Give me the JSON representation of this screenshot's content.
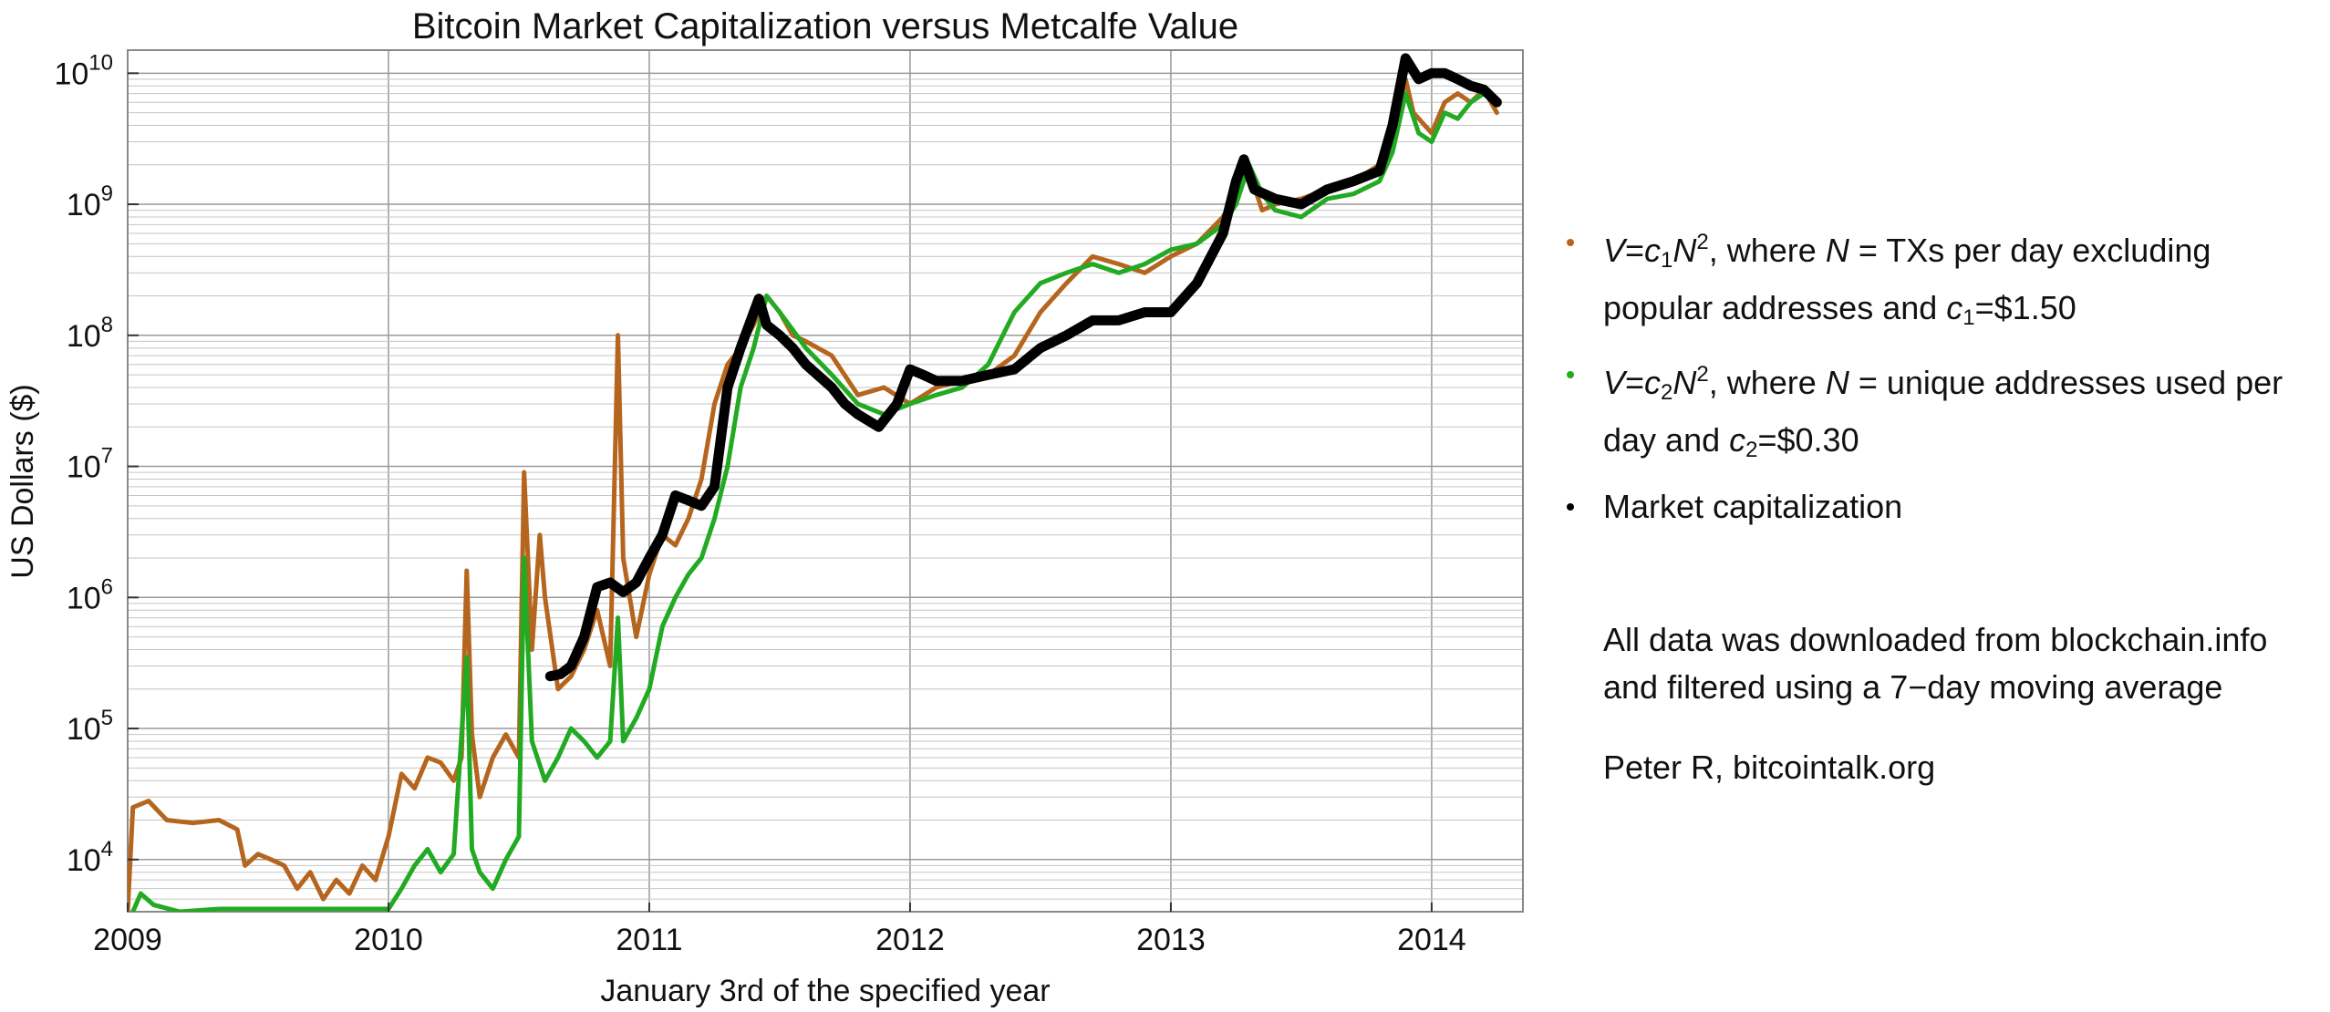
{
  "chart_data": {
    "type": "line",
    "title": "Bitcoin Market Capitalization versus Metcalfe Value",
    "xlabel": "January 3rd of the specified year",
    "ylabel": "US Dollars ($)",
    "xlim": [
      2009.0,
      2014.35
    ],
    "ylim": [
      4000,
      15000000000
    ],
    "y_scale": "log",
    "grid": true,
    "x_ticks": [
      "2009",
      "2010",
      "2011",
      "2012",
      "2013",
      "2014"
    ],
    "y_ticks": [
      {
        "base": "10",
        "exp": "4"
      },
      {
        "base": "10",
        "exp": "5"
      },
      {
        "base": "10",
        "exp": "6"
      },
      {
        "base": "10",
        "exp": "7"
      },
      {
        "base": "10",
        "exp": "8"
      },
      {
        "base": "10",
        "exp": "9"
      },
      {
        "base": "10",
        "exp": "10"
      }
    ],
    "legend_position": "right",
    "series": [
      {
        "name": "V=c1N2, where N = TXs per day excluding popular addresses and c1=$1.50",
        "color": "#b5651d",
        "points": [
          [
            2009.0,
            4000
          ],
          [
            2009.02,
            25000
          ],
          [
            2009.08,
            28000
          ],
          [
            2009.15,
            20000
          ],
          [
            2009.25,
            19000
          ],
          [
            2009.35,
            20000
          ],
          [
            2009.42,
            17000
          ],
          [
            2009.45,
            9000
          ],
          [
            2009.5,
            11000
          ],
          [
            2009.55,
            10000
          ],
          [
            2009.6,
            9000
          ],
          [
            2009.65,
            6000
          ],
          [
            2009.7,
            8000
          ],
          [
            2009.75,
            5000
          ],
          [
            2009.8,
            7000
          ],
          [
            2009.85,
            5500
          ],
          [
            2009.9,
            9000
          ],
          [
            2009.95,
            7000
          ],
          [
            2010.0,
            15000
          ],
          [
            2010.05,
            45000
          ],
          [
            2010.1,
            35000
          ],
          [
            2010.15,
            60000
          ],
          [
            2010.2,
            55000
          ],
          [
            2010.25,
            40000
          ],
          [
            2010.28,
            60000
          ],
          [
            2010.3,
            1600000
          ],
          [
            2010.32,
            90000
          ],
          [
            2010.35,
            30000
          ],
          [
            2010.4,
            60000
          ],
          [
            2010.45,
            90000
          ],
          [
            2010.5,
            60000
          ],
          [
            2010.52,
            9000000
          ],
          [
            2010.55,
            400000
          ],
          [
            2010.58,
            3000000
          ],
          [
            2010.6,
            1000000
          ],
          [
            2010.65,
            200000
          ],
          [
            2010.7,
            250000
          ],
          [
            2010.75,
            400000
          ],
          [
            2010.8,
            800000
          ],
          [
            2010.85,
            300000
          ],
          [
            2010.88,
            100000000
          ],
          [
            2010.9,
            2000000
          ],
          [
            2010.95,
            500000
          ],
          [
            2011.0,
            1500000
          ],
          [
            2011.05,
            3000000
          ],
          [
            2011.1,
            2500000
          ],
          [
            2011.15,
            4000000
          ],
          [
            2011.2,
            8000000
          ],
          [
            2011.25,
            30000000
          ],
          [
            2011.3,
            60000000
          ],
          [
            2011.35,
            80000000
          ],
          [
            2011.4,
            120000000
          ],
          [
            2011.45,
            200000000
          ],
          [
            2011.5,
            150000000
          ],
          [
            2011.55,
            100000000
          ],
          [
            2011.6,
            90000000
          ],
          [
            2011.7,
            70000000
          ],
          [
            2011.8,
            35000000
          ],
          [
            2011.9,
            40000000
          ],
          [
            2012.0,
            30000000
          ],
          [
            2012.1,
            40000000
          ],
          [
            2012.2,
            45000000
          ],
          [
            2012.3,
            50000000
          ],
          [
            2012.4,
            70000000
          ],
          [
            2012.5,
            150000000
          ],
          [
            2012.6,
            250000000
          ],
          [
            2012.7,
            400000000
          ],
          [
            2012.8,
            350000000
          ],
          [
            2012.9,
            300000000
          ],
          [
            2013.0,
            400000000
          ],
          [
            2013.1,
            500000000
          ],
          [
            2013.2,
            800000000
          ],
          [
            2013.25,
            1200000000
          ],
          [
            2013.3,
            1800000000
          ],
          [
            2013.35,
            900000000
          ],
          [
            2013.4,
            1000000000
          ],
          [
            2013.5,
            1100000000
          ],
          [
            2013.6,
            1300000000
          ],
          [
            2013.7,
            1500000000
          ],
          [
            2013.8,
            2000000000
          ],
          [
            2013.85,
            3000000000
          ],
          [
            2013.9,
            9000000000
          ],
          [
            2013.93,
            5000000000
          ],
          [
            2014.0,
            3500000000
          ],
          [
            2014.05,
            6000000000
          ],
          [
            2014.1,
            7000000000
          ],
          [
            2014.15,
            6000000000
          ],
          [
            2014.2,
            7500000000
          ],
          [
            2014.25,
            5000000000
          ]
        ]
      },
      {
        "name": "V=c2N2, where N = unique addresses used per day and c2=$0.30",
        "color": "#22aa22",
        "points": [
          [
            2009.02,
            4000
          ],
          [
            2009.05,
            5500
          ],
          [
            2009.1,
            4500
          ],
          [
            2009.2,
            4000
          ],
          [
            2009.35,
            4200
          ],
          [
            2010.0,
            4200
          ],
          [
            2010.05,
            6000
          ],
          [
            2010.1,
            9000
          ],
          [
            2010.15,
            12000
          ],
          [
            2010.2,
            8000
          ],
          [
            2010.25,
            11000
          ],
          [
            2010.3,
            350000
          ],
          [
            2010.32,
            12000
          ],
          [
            2010.35,
            8000
          ],
          [
            2010.4,
            6000
          ],
          [
            2010.45,
            10000
          ],
          [
            2010.5,
            15000
          ],
          [
            2010.52,
            2000000
          ],
          [
            2010.55,
            80000
          ],
          [
            2010.6,
            40000
          ],
          [
            2010.65,
            60000
          ],
          [
            2010.7,
            100000
          ],
          [
            2010.75,
            80000
          ],
          [
            2010.8,
            60000
          ],
          [
            2010.85,
            80000
          ],
          [
            2010.88,
            700000
          ],
          [
            2010.9,
            80000
          ],
          [
            2010.95,
            120000
          ],
          [
            2011.0,
            200000
          ],
          [
            2011.05,
            600000
          ],
          [
            2011.1,
            1000000
          ],
          [
            2011.15,
            1500000
          ],
          [
            2011.2,
            2000000
          ],
          [
            2011.25,
            4000000
          ],
          [
            2011.3,
            10000000
          ],
          [
            2011.35,
            40000000
          ],
          [
            2011.4,
            80000000
          ],
          [
            2011.45,
            200000000
          ],
          [
            2011.5,
            150000000
          ],
          [
            2011.55,
            110000000
          ],
          [
            2011.6,
            80000000
          ],
          [
            2011.7,
            50000000
          ],
          [
            2011.8,
            30000000
          ],
          [
            2011.9,
            25000000
          ],
          [
            2012.0,
            30000000
          ],
          [
            2012.1,
            35000000
          ],
          [
            2012.2,
            40000000
          ],
          [
            2012.3,
            60000000
          ],
          [
            2012.4,
            150000000
          ],
          [
            2012.5,
            250000000
          ],
          [
            2012.6,
            300000000
          ],
          [
            2012.7,
            350000000
          ],
          [
            2012.8,
            300000000
          ],
          [
            2012.9,
            350000000
          ],
          [
            2013.0,
            450000000
          ],
          [
            2013.1,
            500000000
          ],
          [
            2013.2,
            700000000
          ],
          [
            2013.25,
            1000000000
          ],
          [
            2013.3,
            2000000000
          ],
          [
            2013.35,
            1200000000
          ],
          [
            2013.4,
            900000000
          ],
          [
            2013.5,
            800000000
          ],
          [
            2013.6,
            1100000000
          ],
          [
            2013.7,
            1200000000
          ],
          [
            2013.8,
            1500000000
          ],
          [
            2013.85,
            2500000000
          ],
          [
            2013.9,
            7000000000
          ],
          [
            2013.95,
            3500000000
          ],
          [
            2014.0,
            3000000000
          ],
          [
            2014.05,
            5000000000
          ],
          [
            2014.1,
            4500000000
          ],
          [
            2014.15,
            6000000000
          ],
          [
            2014.2,
            7000000000
          ],
          [
            2014.25,
            6000000000
          ]
        ]
      },
      {
        "name": "Market capitalization",
        "color": "#000000",
        "points": [
          [
            2010.62,
            250000
          ],
          [
            2010.66,
            260000
          ],
          [
            2010.7,
            300000
          ],
          [
            2010.75,
            500000
          ],
          [
            2010.8,
            1200000
          ],
          [
            2010.85,
            1300000
          ],
          [
            2010.9,
            1100000
          ],
          [
            2010.95,
            1300000
          ],
          [
            2011.0,
            2000000
          ],
          [
            2011.05,
            3000000
          ],
          [
            2011.1,
            6000000
          ],
          [
            2011.15,
            5500000
          ],
          [
            2011.2,
            5000000
          ],
          [
            2011.25,
            7000000
          ],
          [
            2011.3,
            40000000
          ],
          [
            2011.35,
            80000000
          ],
          [
            2011.42,
            190000000
          ],
          [
            2011.45,
            120000000
          ],
          [
            2011.5,
            100000000
          ],
          [
            2011.55,
            80000000
          ],
          [
            2011.6,
            60000000
          ],
          [
            2011.7,
            40000000
          ],
          [
            2011.75,
            30000000
          ],
          [
            2011.8,
            25000000
          ],
          [
            2011.88,
            20000000
          ],
          [
            2011.95,
            30000000
          ],
          [
            2012.0,
            55000000
          ],
          [
            2012.05,
            50000000
          ],
          [
            2012.1,
            45000000
          ],
          [
            2012.2,
            45000000
          ],
          [
            2012.3,
            50000000
          ],
          [
            2012.4,
            55000000
          ],
          [
            2012.5,
            80000000
          ],
          [
            2012.6,
            100000000
          ],
          [
            2012.7,
            130000000
          ],
          [
            2012.8,
            130000000
          ],
          [
            2012.9,
            150000000
          ],
          [
            2013.0,
            150000000
          ],
          [
            2013.1,
            250000000
          ],
          [
            2013.2,
            600000000
          ],
          [
            2013.25,
            1500000000
          ],
          [
            2013.28,
            2200000000
          ],
          [
            2013.32,
            1300000000
          ],
          [
            2013.4,
            1100000000
          ],
          [
            2013.5,
            1000000000
          ],
          [
            2013.6,
            1300000000
          ],
          [
            2013.7,
            1500000000
          ],
          [
            2013.8,
            1800000000
          ],
          [
            2013.85,
            4000000000
          ],
          [
            2013.9,
            13000000000
          ],
          [
            2013.95,
            9000000000
          ],
          [
            2014.0,
            10000000000
          ],
          [
            2014.05,
            10000000000
          ],
          [
            2014.1,
            9000000000
          ],
          [
            2014.15,
            8000000000
          ],
          [
            2014.2,
            7500000000
          ],
          [
            2014.25,
            6000000000
          ]
        ]
      }
    ]
  },
  "legend": {
    "item1": {
      "color": "#b5651d",
      "v": "V",
      "eq": "=",
      "c": "c",
      "c_sub": "1",
      "n": "N",
      "n_sup": "2",
      "where": ", where ",
      "n2": "N",
      "text": " = TXs per day excluding popular addresses and ",
      "c2": "c",
      "c2_sub": "1",
      "value": "=$1.50"
    },
    "item2": {
      "color": "#22aa22",
      "v": "V",
      "eq": "=",
      "c": "c",
      "c_sub": "2",
      "n": "N",
      "n_sup": "2",
      "where": ", where ",
      "n2": "N",
      "text": " = unique addresses used per day and ",
      "c2": "c",
      "c2_sub": "2",
      "value": "=$0.30"
    },
    "item3": {
      "color": "#000000",
      "text": "Market capitalization"
    }
  },
  "notes": {
    "source_line1": "All data was downloaded from blockchain.info",
    "source_line2": "and filtered using a 7−day moving average",
    "author": "Peter R, bitcointalk.org"
  }
}
